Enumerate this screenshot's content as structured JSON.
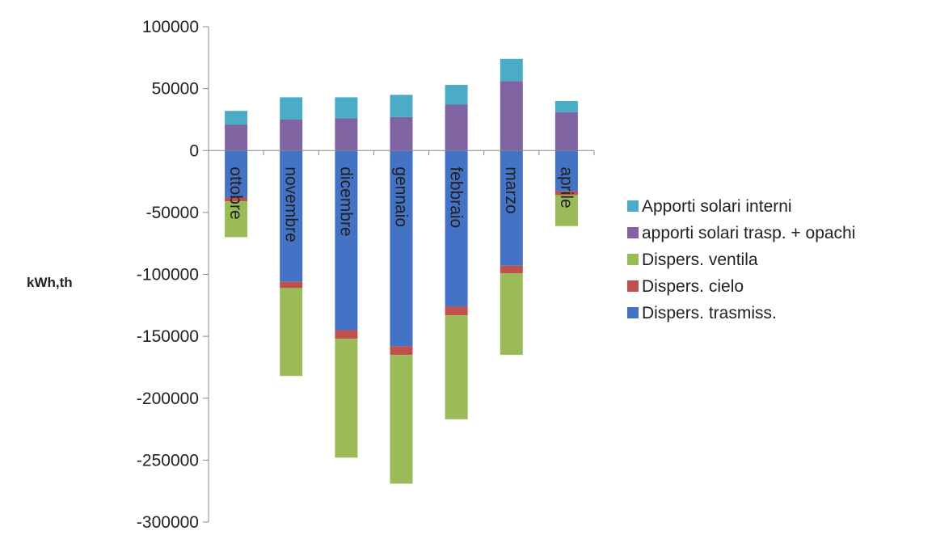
{
  "chart_data": {
    "type": "bar",
    "stacked": true,
    "title": "",
    "xlabel": "",
    "ylabel": "kWh,th",
    "ylim": [
      -300000,
      100000
    ],
    "yticks": [
      100000,
      50000,
      0,
      -50000,
      -100000,
      -150000,
      -200000,
      -250000,
      -300000
    ],
    "ytick_labels": [
      "100000",
      "50000",
      "0",
      "-50000",
      "-100000",
      "-150000",
      "-200000",
      "-250000",
      "-300000"
    ],
    "categories": [
      "ottobre",
      "novembre",
      "dicembre",
      "gennaio",
      "febbraio",
      "marzo",
      "aprile"
    ],
    "legend_position": "right",
    "series": [
      {
        "name": "Dispers. trasmiss.",
        "color": "#4472C4",
        "values": [
          -38000,
          -106000,
          -145000,
          -158000,
          -126000,
          -93000,
          -33000
        ]
      },
      {
        "name": "Dispers. cielo",
        "color": "#C0504D",
        "values": [
          -3000,
          -5000,
          -7000,
          -7000,
          -7000,
          -6000,
          -3000
        ]
      },
      {
        "name": "Dispers. ventila",
        "color": "#9BBB59",
        "values": [
          -29000,
          -71000,
          -96000,
          -104000,
          -84000,
          -66000,
          -25000
        ]
      },
      {
        "name": "apporti solari trasp. + opachi",
        "color": "#8064A2",
        "values": [
          21000,
          25000,
          26000,
          27000,
          37000,
          56000,
          31000
        ]
      },
      {
        "name": "Apporti solari interni",
        "color": "#4BACC6",
        "values": [
          11000,
          18000,
          17000,
          18000,
          16000,
          18000,
          9000
        ]
      }
    ],
    "legend_order": [
      "Apporti solari interni",
      "apporti solari trasp. + opachi",
      "Dispers. ventila",
      "Dispers. cielo",
      "Dispers. trasmiss."
    ]
  }
}
